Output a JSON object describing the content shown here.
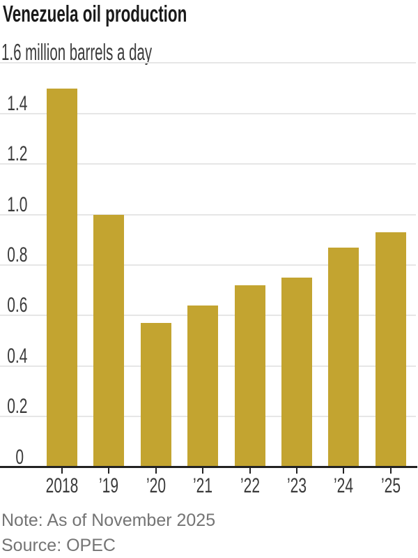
{
  "chart_data": {
    "type": "bar",
    "title": "Venezuela oil production",
    "unit_label": "1.6 million barrels a day",
    "ylabel": "million barrels a day",
    "categories": [
      "2018",
      "’19",
      "’20",
      "’21",
      "’22",
      "’23",
      "’24",
      "’25"
    ],
    "values": [
      1.5,
      1.0,
      0.57,
      0.64,
      0.72,
      0.75,
      0.87,
      0.93
    ],
    "ylim": [
      0,
      1.6
    ],
    "ytick_step": 0.2,
    "ytick_labels": [
      "0",
      "0.2",
      "0.4",
      "0.6",
      "0.8",
      "1.0",
      "1.2",
      "1.4"
    ],
    "grid": "horizontal",
    "legend": "none",
    "note": "Note: As of November 2025",
    "source": "Source: OPEC",
    "colors": {
      "bar": "#c3a430",
      "axis": "#222222",
      "gridline": "#e6e6e6",
      "title_text": "#1a1a1a",
      "label_text": "#3a3a3a",
      "footer_text": "#747474"
    }
  }
}
